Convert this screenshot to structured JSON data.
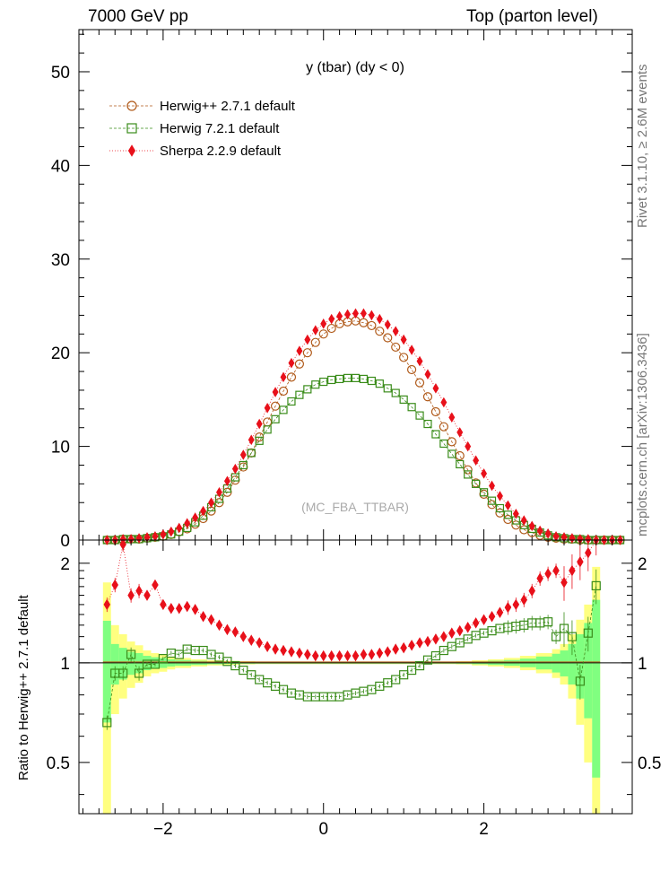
{
  "header": {
    "left": "7000 GeV pp",
    "right": "Top (parton level)"
  },
  "side_labels": {
    "rivet": "Rivet 3.1.10, ≥ 2.6M events",
    "mcplots": "mcplots.cern.ch [arXiv:1306.3436]"
  },
  "chart_data": [
    {
      "type": "scatter",
      "title": "y (tbar) (dy < 0)",
      "watermark": "(MC_FBA_TTBAR)",
      "xlabel": "",
      "ylabel": "",
      "xlim": [
        -3.05,
        3.85
      ],
      "ylim": [
        0,
        54.5
      ],
      "yticks": [
        "0",
        "10",
        "20",
        "30",
        "40",
        "50"
      ],
      "legend_position": "top-left",
      "x": [
        -2.7,
        -2.6,
        -2.5,
        -2.4,
        -2.3,
        -2.2,
        -2.1,
        -2.0,
        -1.9,
        -1.8,
        -1.7,
        -1.6,
        -1.5,
        -1.4,
        -1.3,
        -1.2,
        -1.1,
        -1.0,
        -0.9,
        -0.8,
        -0.7,
        -0.6,
        -0.5,
        -0.4,
        -0.3,
        -0.2,
        -0.1,
        0.0,
        0.1,
        0.2,
        0.3,
        0.4,
        0.5,
        0.6,
        0.7,
        0.8,
        0.9,
        1.0,
        1.1,
        1.2,
        1.3,
        1.4,
        1.5,
        1.6,
        1.7,
        1.8,
        1.9,
        2.0,
        2.1,
        2.2,
        2.3,
        2.4,
        2.5,
        2.6,
        2.7,
        2.8,
        2.9,
        3.0,
        3.1,
        3.2,
        3.3,
        3.4,
        3.5,
        3.6,
        3.7
      ],
      "series": [
        {
          "name": "Herwig++ 2.7.1 default",
          "color": "#b05a1a",
          "marker": "open-circle",
          "values": [
            0.0,
            0.0,
            0.1,
            0.1,
            0.1,
            0.2,
            0.3,
            0.4,
            0.6,
            0.9,
            1.2,
            1.7,
            2.3,
            3.1,
            4.0,
            5.1,
            6.4,
            7.8,
            9.3,
            11.0,
            12.6,
            14.3,
            15.9,
            17.4,
            18.8,
            20.0,
            21.1,
            22.0,
            22.6,
            23.1,
            23.3,
            23.4,
            23.2,
            22.9,
            22.3,
            21.6,
            20.6,
            19.5,
            18.2,
            16.8,
            15.3,
            13.7,
            12.1,
            10.5,
            9.0,
            7.5,
            6.1,
            4.9,
            3.8,
            2.9,
            2.2,
            1.6,
            1.1,
            0.8,
            0.5,
            0.3,
            0.2,
            0.1,
            0.1,
            0.0,
            0.0,
            0.0,
            0.0,
            0.0,
            0.0
          ]
        },
        {
          "name": "Herwig 7.2.1 default",
          "color": "#3a8c1a",
          "marker": "open-square",
          "values": [
            0.0,
            0.0,
            0.1,
            0.1,
            0.1,
            0.2,
            0.3,
            0.4,
            0.6,
            0.9,
            1.3,
            1.9,
            2.6,
            3.5,
            4.4,
            5.5,
            6.7,
            8.0,
            9.3,
            10.6,
            11.8,
            12.9,
            13.9,
            14.8,
            15.5,
            16.1,
            16.6,
            16.9,
            17.1,
            17.2,
            17.3,
            17.3,
            17.2,
            17.0,
            16.7,
            16.2,
            15.7,
            15.0,
            14.2,
            13.3,
            12.4,
            11.3,
            10.3,
            9.2,
            8.1,
            7.0,
            6.0,
            5.1,
            4.2,
            3.4,
            2.7,
            2.1,
            1.6,
            1.2,
            0.8,
            0.5,
            0.3,
            0.2,
            0.1,
            0.1,
            0.0,
            0.0,
            0.0,
            0.0,
            0.0
          ]
        },
        {
          "name": "Sherpa 2.2.9 default",
          "color": "#e8101a",
          "marker": "filled-diamond",
          "values": [
            0.0,
            0.0,
            0.1,
            0.1,
            0.2,
            0.3,
            0.4,
            0.6,
            0.9,
            1.3,
            1.8,
            2.4,
            3.1,
            4.0,
            5.1,
            6.3,
            7.6,
            9.1,
            10.7,
            12.4,
            14.1,
            15.8,
            17.4,
            18.9,
            20.2,
            21.4,
            22.4,
            23.1,
            23.6,
            23.9,
            24.1,
            24.2,
            24.2,
            24.0,
            23.6,
            23.0,
            22.3,
            21.4,
            20.3,
            19.1,
            17.7,
            16.2,
            14.7,
            13.1,
            11.5,
            10.0,
            8.5,
            7.1,
            5.8,
            4.7,
            3.7,
            2.8,
            2.1,
            1.5,
            1.0,
            0.7,
            0.4,
            0.3,
            0.2,
            0.1,
            0.1,
            0.0,
            0.0,
            0.0,
            0.0
          ]
        }
      ]
    },
    {
      "type": "scatter",
      "title": "",
      "xlabel": "",
      "ylabel": "Ratio to Herwig++ 2.7.1 default",
      "xlim": [
        -3.05,
        3.85
      ],
      "ylim": [
        0.35,
        2.35
      ],
      "xticks": [
        "−2",
        "0",
        "2"
      ],
      "yticks": [
        "0.5",
        "1",
        "2"
      ],
      "reference_line": 1.0,
      "x": [
        -2.7,
        -2.6,
        -2.5,
        -2.4,
        -2.3,
        -2.2,
        -2.1,
        -2.0,
        -1.9,
        -1.8,
        -1.7,
        -1.6,
        -1.5,
        -1.4,
        -1.3,
        -1.2,
        -1.1,
        -1.0,
        -0.9,
        -0.8,
        -0.7,
        -0.6,
        -0.5,
        -0.4,
        -0.3,
        -0.2,
        -0.1,
        0.0,
        0.1,
        0.2,
        0.3,
        0.4,
        0.5,
        0.6,
        0.7,
        0.8,
        0.9,
        1.0,
        1.1,
        1.2,
        1.3,
        1.4,
        1.5,
        1.6,
        1.7,
        1.8,
        1.9,
        2.0,
        2.1,
        2.2,
        2.3,
        2.4,
        2.5,
        2.6,
        2.7,
        2.8,
        2.9,
        3.0,
        3.1,
        3.2,
        3.3,
        3.4
      ],
      "uncertainty_band": {
        "x_edges": [
          -2.75,
          -2.65,
          -2.55,
          -2.45,
          -2.35,
          -2.25,
          -2.15,
          -2.05,
          -1.95,
          -1.85,
          -1.65,
          -1.45,
          -1.25,
          -1.05,
          -0.85,
          1.65,
          1.85,
          2.05,
          2.25,
          2.45,
          2.65,
          2.85,
          2.95,
          3.05,
          3.15,
          3.25,
          3.35,
          3.45
        ],
        "green_half_width": [
          0.34,
          0.14,
          0.11,
          0.08,
          0.07,
          0.05,
          0.04,
          0.035,
          0.025,
          0.02,
          0.015,
          0.01,
          0.008,
          0.006,
          0.005,
          0.006,
          0.01,
          0.015,
          0.02,
          0.03,
          0.045,
          0.065,
          0.09,
          0.14,
          0.22,
          0.32,
          0.55
        ],
        "yellow_half_width": [
          0.75,
          0.3,
          0.22,
          0.16,
          0.13,
          0.09,
          0.07,
          0.06,
          0.045,
          0.035,
          0.025,
          0.018,
          0.014,
          0.011,
          0.009,
          0.011,
          0.018,
          0.025,
          0.035,
          0.05,
          0.07,
          0.1,
          0.14,
          0.22,
          0.35,
          0.5,
          0.95
        ]
      },
      "series": [
        {
          "name": "Herwig 7.2.1 default",
          "color": "#3a8c1a",
          "marker": "open-square",
          "values": [
            0.66,
            0.93,
            0.93,
            1.06,
            0.93,
            0.99,
            0.99,
            1.03,
            1.07,
            1.06,
            1.1,
            1.09,
            1.09,
            1.06,
            1.04,
            1.01,
            0.98,
            0.95,
            0.92,
            0.89,
            0.87,
            0.85,
            0.83,
            0.81,
            0.8,
            0.79,
            0.79,
            0.79,
            0.79,
            0.79,
            0.8,
            0.81,
            0.82,
            0.83,
            0.85,
            0.87,
            0.89,
            0.92,
            0.95,
            0.98,
            1.02,
            1.05,
            1.09,
            1.12,
            1.15,
            1.18,
            1.21,
            1.23,
            1.25,
            1.27,
            1.28,
            1.29,
            1.3,
            1.32,
            1.32,
            1.33,
            1.2,
            1.27,
            1.2,
            0.88,
            1.23,
            1.71
          ]
        },
        {
          "name": "Sherpa 2.2.9 default",
          "color": "#e8101a",
          "marker": "filled-diamond",
          "values": [
            1.5,
            1.72,
            2.28,
            1.6,
            1.65,
            1.6,
            1.72,
            1.5,
            1.46,
            1.46,
            1.48,
            1.45,
            1.38,
            1.35,
            1.3,
            1.26,
            1.24,
            1.2,
            1.17,
            1.15,
            1.12,
            1.1,
            1.09,
            1.08,
            1.07,
            1.06,
            1.05,
            1.05,
            1.05,
            1.05,
            1.05,
            1.05,
            1.06,
            1.06,
            1.07,
            1.08,
            1.1,
            1.11,
            1.13,
            1.15,
            1.16,
            1.18,
            1.2,
            1.23,
            1.25,
            1.28,
            1.32,
            1.35,
            1.38,
            1.42,
            1.47,
            1.5,
            1.55,
            1.65,
            1.8,
            1.86,
            1.9,
            1.75,
            1.9,
            2.02,
            2.15,
            2.4
          ]
        }
      ]
    }
  ]
}
